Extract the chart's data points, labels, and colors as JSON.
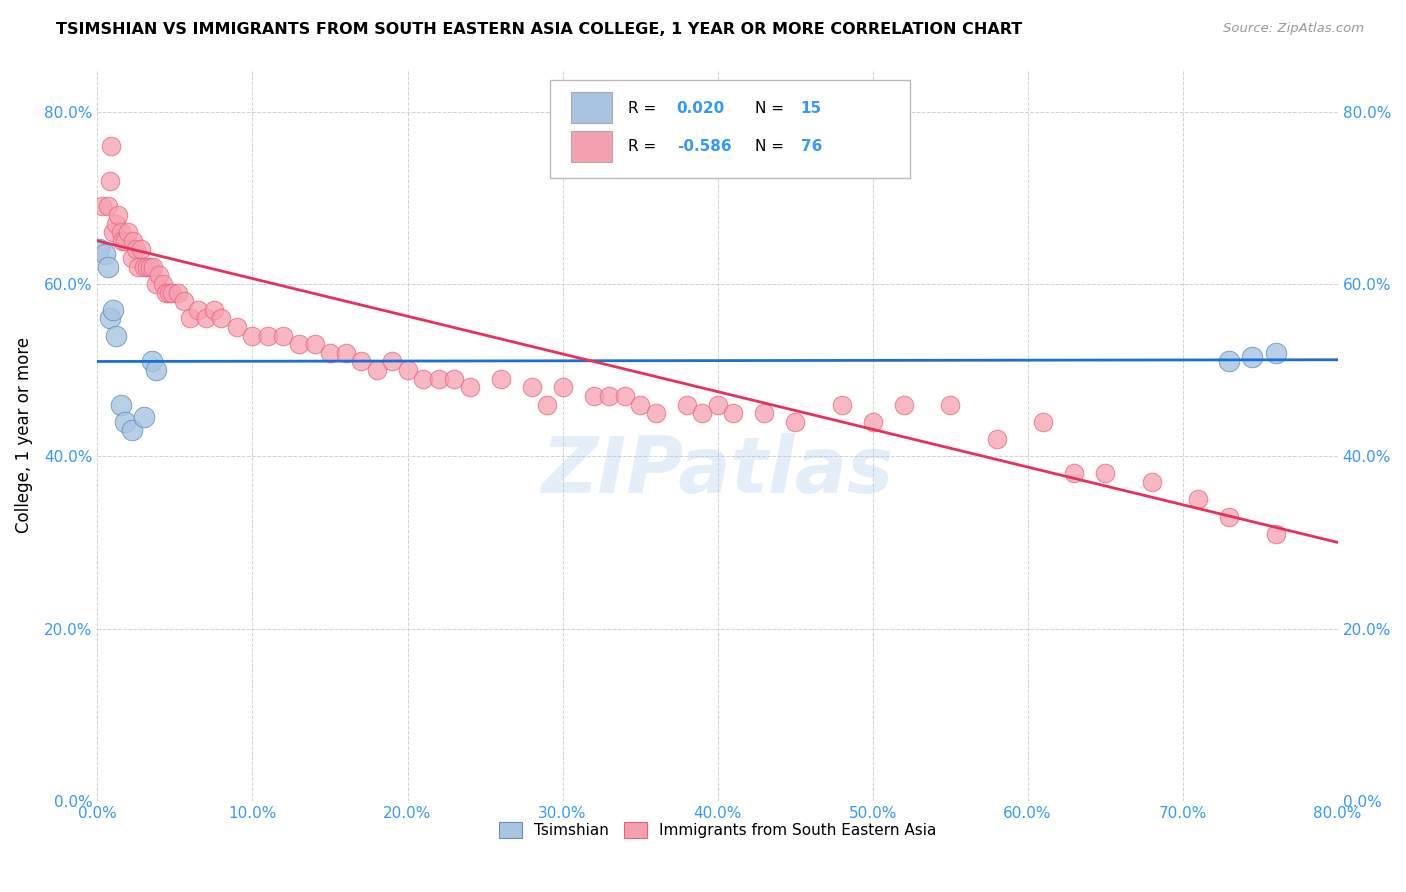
{
  "title": "TSIMSHIAN VS IMMIGRANTS FROM SOUTH EASTERN ASIA COLLEGE, 1 YEAR OR MORE CORRELATION CHART",
  "source": "Source: ZipAtlas.com",
  "ylabel": "College, 1 year or more",
  "xmin": 0.0,
  "xmax": 0.8,
  "ymin": 0.0,
  "ymax": 0.85,
  "tsimshian_color": "#a8c4e0",
  "immigrants_color": "#f5a0b0",
  "tsimshian_line_color": "#1a6fdb",
  "immigrants_line_color": "#e8305a",
  "R_tsimshian": 0.02,
  "N_tsimshian": 15,
  "R_immigrants": -0.586,
  "N_immigrants": 76,
  "tsimshian_x": [
    0.001,
    0.005,
    0.007,
    0.008,
    0.01,
    0.012,
    0.015,
    0.018,
    0.022,
    0.03,
    0.035,
    0.038,
    0.73,
    0.745,
    0.76
  ],
  "tsimshian_y": [
    0.64,
    0.635,
    0.62,
    0.56,
    0.57,
    0.54,
    0.46,
    0.44,
    0.43,
    0.445,
    0.51,
    0.5,
    0.51,
    0.515,
    0.52
  ],
  "immigrants_x": [
    0.003,
    0.007,
    0.008,
    0.009,
    0.01,
    0.012,
    0.013,
    0.015,
    0.016,
    0.018,
    0.02,
    0.022,
    0.023,
    0.025,
    0.026,
    0.028,
    0.03,
    0.032,
    0.034,
    0.036,
    0.038,
    0.04,
    0.042,
    0.044,
    0.046,
    0.048,
    0.052,
    0.056,
    0.06,
    0.065,
    0.07,
    0.075,
    0.08,
    0.09,
    0.1,
    0.11,
    0.12,
    0.13,
    0.14,
    0.15,
    0.16,
    0.17,
    0.18,
    0.19,
    0.2,
    0.21,
    0.22,
    0.23,
    0.24,
    0.26,
    0.28,
    0.29,
    0.3,
    0.32,
    0.33,
    0.34,
    0.35,
    0.36,
    0.38,
    0.39,
    0.4,
    0.41,
    0.43,
    0.45,
    0.48,
    0.5,
    0.52,
    0.55,
    0.58,
    0.61,
    0.63,
    0.65,
    0.68,
    0.71,
    0.73,
    0.76
  ],
  "immigrants_y": [
    0.69,
    0.69,
    0.72,
    0.76,
    0.66,
    0.67,
    0.68,
    0.66,
    0.65,
    0.65,
    0.66,
    0.63,
    0.65,
    0.64,
    0.62,
    0.64,
    0.62,
    0.62,
    0.62,
    0.62,
    0.6,
    0.61,
    0.6,
    0.59,
    0.59,
    0.59,
    0.59,
    0.58,
    0.56,
    0.57,
    0.56,
    0.57,
    0.56,
    0.55,
    0.54,
    0.54,
    0.54,
    0.53,
    0.53,
    0.52,
    0.52,
    0.51,
    0.5,
    0.51,
    0.5,
    0.49,
    0.49,
    0.49,
    0.48,
    0.49,
    0.48,
    0.46,
    0.48,
    0.47,
    0.47,
    0.47,
    0.46,
    0.45,
    0.46,
    0.45,
    0.46,
    0.45,
    0.45,
    0.44,
    0.46,
    0.44,
    0.46,
    0.46,
    0.42,
    0.44,
    0.38,
    0.38,
    0.37,
    0.35,
    0.33,
    0.31
  ],
  "watermark": "ZIPatlas",
  "legend_label_tsimshian": "Tsimshian",
  "legend_label_immigrants": "Immigrants from South Eastern Asia",
  "tsimshian_line_y0": 0.51,
  "tsimshian_line_y1": 0.512,
  "immigrants_line_y0": 0.65,
  "immigrants_line_y1": 0.3
}
